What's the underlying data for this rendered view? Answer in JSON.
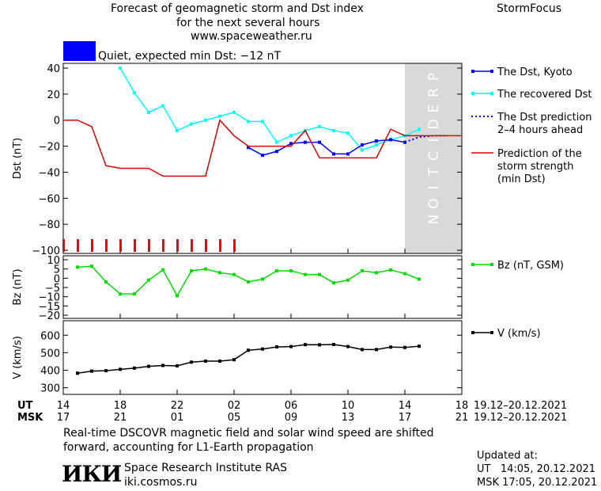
{
  "header": {
    "title_line1": "Forecast of geomagnetic storm and Dst index",
    "title_line2": "for the next several hours",
    "site": "www.spaceweather.ru",
    "brand": "StormFocus"
  },
  "status": {
    "text": "Quiet, expected min Dst: −12 nT",
    "color": "#0000ff"
  },
  "prediction_label": "PREDICTION",
  "chart_data": [
    {
      "type": "line",
      "ylabel": "Dst (nT)",
      "ylim": [
        -100,
        40
      ],
      "yticks": [
        "40",
        "20",
        "0",
        "−20",
        "−40",
        "−60",
        "−80",
        "−100"
      ],
      "ytick_values": [
        40,
        20,
        0,
        -20,
        -40,
        -60,
        -80,
        -100
      ],
      "legend": [
        {
          "label": "The Dst, Kyoto",
          "color": "#0000ff",
          "style": "solid-marker"
        },
        {
          "label": "The recovered Dst",
          "color": "#00ffff",
          "style": "solid-marker"
        },
        {
          "label": "The Dst prediction\n2–4 hours ahead",
          "color": "#0000ff",
          "style": "dotted"
        },
        {
          "label": "Prediction of the\nstorm strength\n(min Dst)",
          "color": "#dd0000",
          "style": "solid"
        }
      ],
      "series": [
        {
          "name": "The recovered Dst",
          "color": "#00ffff",
          "x": [
            18,
            19,
            20,
            21,
            22,
            23,
            24,
            25,
            26,
            27,
            28,
            29,
            30,
            31,
            32,
            33,
            34,
            35,
            36,
            37,
            38,
            39
          ],
          "y": [
            40,
            21,
            6,
            11,
            -8,
            -3,
            0,
            3,
            6,
            -1,
            -1,
            -17,
            -12,
            -8,
            -5,
            -8,
            -10,
            -23,
            -19,
            -15,
            -12,
            -7
          ]
        },
        {
          "name": "The Dst, Kyoto",
          "color": "#0000ff",
          "x": [
            27,
            28,
            29,
            30,
            31,
            32,
            33,
            34,
            35,
            36,
            37,
            38
          ],
          "y": [
            -21,
            -27,
            -24,
            -18,
            -17,
            -17,
            -26,
            -26,
            -19,
            -16,
            -15,
            -17
          ]
        },
        {
          "name": "The Dst prediction 2–4 hours ahead",
          "color": "#0000ff",
          "x": [
            38,
            39,
            40,
            41
          ],
          "y": [
            -17,
            -13,
            -12,
            -12
          ]
        },
        {
          "name": "Prediction of the storm strength (min Dst)",
          "color": "#dd0000",
          "x": [
            14,
            15,
            16,
            17,
            18,
            19,
            20,
            21,
            22,
            23,
            24,
            25,
            26,
            27,
            28,
            29,
            30,
            31,
            32,
            33,
            34,
            35,
            36,
            37,
            38,
            39,
            40,
            41,
            42
          ],
          "y": [
            0,
            0,
            -5,
            -35,
            -37,
            -37,
            -37,
            -43,
            -43,
            -43,
            -43,
            0,
            -12,
            -20,
            -20,
            -20,
            -20,
            -8,
            -29,
            -29,
            -29,
            -29,
            -29,
            -7,
            -12,
            -12,
            -12,
            -12,
            -12
          ]
        }
      ],
      "red_ticks_x": [
        14,
        15,
        16,
        17,
        18,
        19,
        20,
        21,
        22,
        23,
        24,
        25,
        26
      ]
    },
    {
      "type": "line",
      "ylabel": "Bz (nT)",
      "ylim": [
        -20,
        10
      ],
      "yticks": [
        "10",
        "5",
        "0",
        "−5",
        "−10",
        "−15",
        "−20"
      ],
      "ytick_values": [
        10,
        5,
        0,
        -5,
        -10,
        -15,
        -20
      ],
      "legend": [
        {
          "label": "Bz (nT, GSM)",
          "color": "#00dd00"
        }
      ],
      "series": [
        {
          "name": "Bz (nT, GSM)",
          "color": "#00dd00",
          "x": [
            15,
            16,
            17,
            18,
            19,
            20,
            21,
            22,
            23,
            24,
            25,
            26,
            27,
            28,
            29,
            30,
            31,
            32,
            33,
            34,
            35,
            36,
            37,
            38,
            39
          ],
          "y": [
            6,
            6.5,
            -2,
            -8.5,
            -8.5,
            -1,
            4.5,
            -9.5,
            4,
            5,
            3,
            2,
            -2,
            -0.5,
            4,
            4,
            2,
            2,
            -2.5,
            -1,
            4,
            3,
            4.5,
            2.5,
            -0.5
          ]
        }
      ]
    },
    {
      "type": "line",
      "ylabel": "V (km/s)",
      "ylim": [
        280,
        660
      ],
      "yticks": [
        "600",
        "500",
        "400",
        "300"
      ],
      "ytick_values": [
        600,
        500,
        400,
        300
      ],
      "legend": [
        {
          "label": "V (km/s)",
          "color": "#000000"
        }
      ],
      "series": [
        {
          "name": "V (km/s)",
          "color": "#000000",
          "x": [
            15,
            16,
            17,
            18,
            19,
            20,
            21,
            22,
            23,
            24,
            25,
            26,
            27,
            28,
            29,
            30,
            31,
            32,
            33,
            34,
            35,
            36,
            37,
            38,
            39
          ],
          "y": [
            383,
            395,
            397,
            405,
            412,
            422,
            427,
            425,
            446,
            452,
            452,
            460,
            514,
            521,
            533,
            535,
            546,
            545,
            547,
            535,
            518,
            518,
            532,
            530,
            537
          ]
        }
      ]
    }
  ],
  "xaxis": {
    "xlim": [
      14,
      42
    ],
    "ut_label": "UT",
    "msk_label": "MSK",
    "ut_ticks": [
      "14",
      "18",
      "22",
      "02",
      "06",
      "10",
      "14",
      "18"
    ],
    "msk_ticks": [
      "17",
      "21",
      "01",
      "05",
      "09",
      "13",
      "17",
      "21"
    ],
    "tick_positions": [
      14,
      18,
      22,
      26,
      30,
      34,
      38,
      42
    ],
    "date_range_ut": "19.12–20.12.2021",
    "date_range_msk": "19.12–20.12.2021",
    "prediction_start": 38
  },
  "footer": {
    "note_line1": "Real-time DSCOVR magnetic field and solar wind speed are shifted",
    "note_line2": "forward, accounting for L1-Earth propagation",
    "logo_text": "ИКИ",
    "institute": "Space Research Institute RAS",
    "institute_site": "iki.cosmos.ru",
    "updated_label": "Updated at:",
    "updated_ut": "UT   14:05, 20.12.2021",
    "updated_msk": "MSK 17:05, 20.12.2021"
  }
}
